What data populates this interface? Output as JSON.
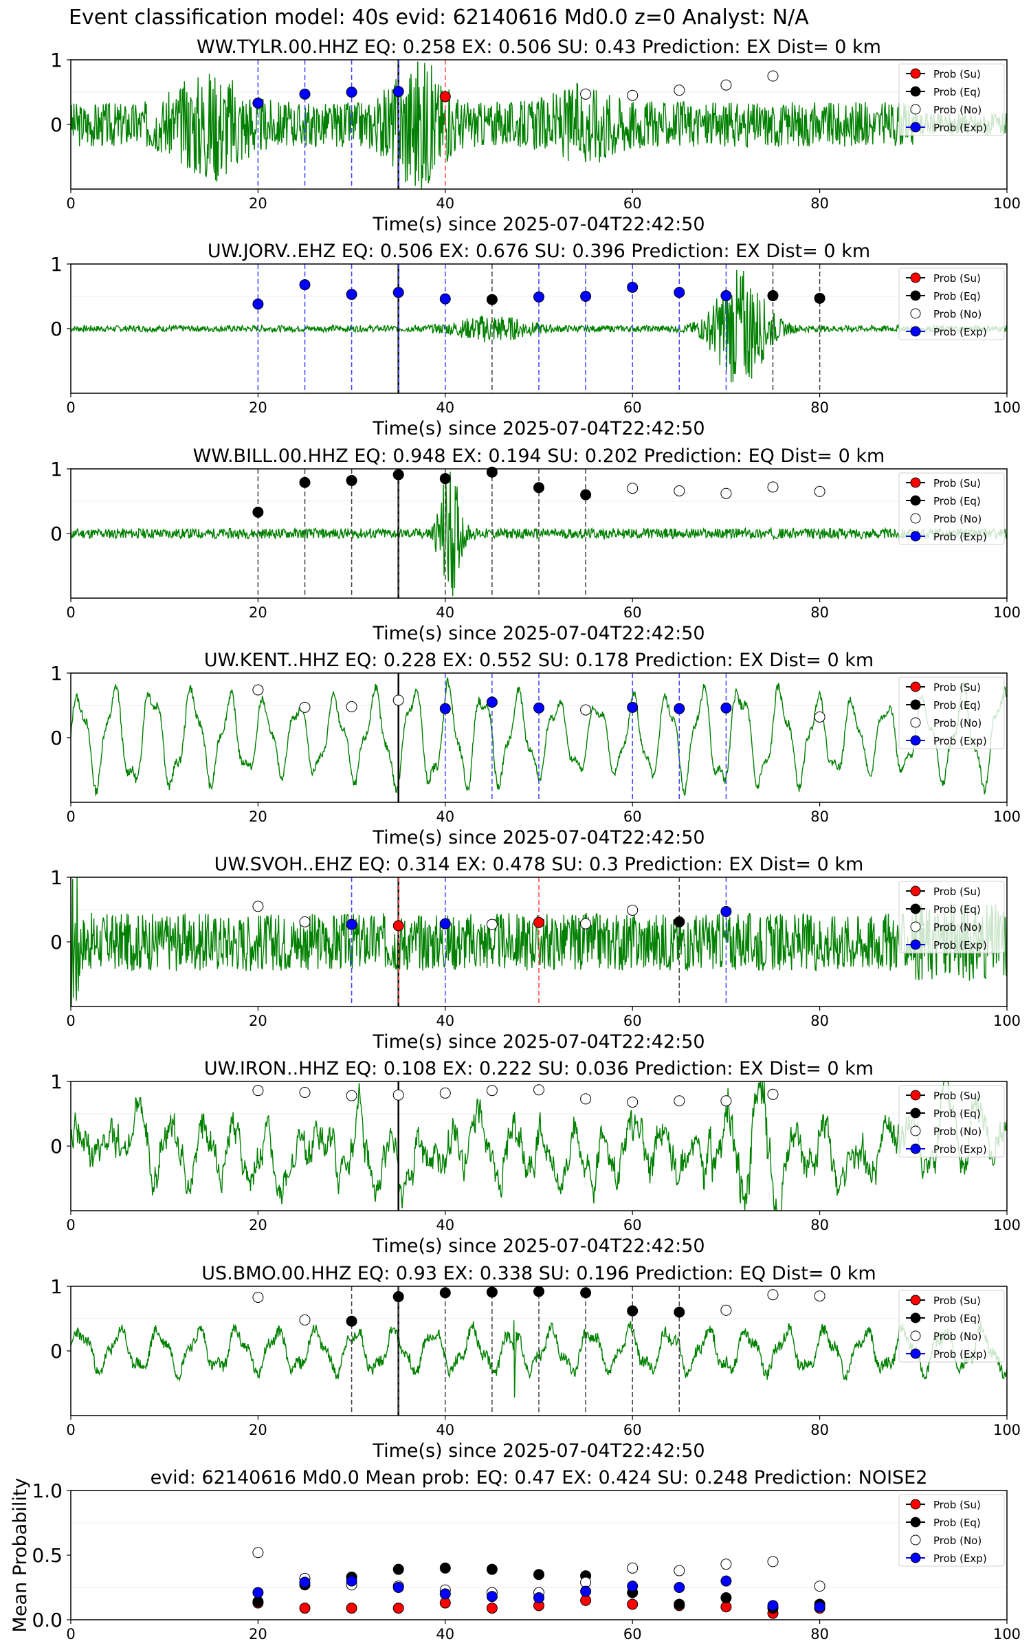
{
  "figure_title": "Event classification model: 40s evid: 62140616 Md0.0 z=0 Analyst: N/A",
  "legend_labels": [
    "Prob (Su)",
    "Prob (Eq)",
    "Prob (No)",
    "Prob (Exp)"
  ],
  "colors": {
    "su": "#ff0000",
    "eq": "#000000",
    "no": "#ffffff",
    "exp": "#0000ff",
    "wave": "#008000"
  },
  "chart_data": [
    {
      "type": "line",
      "title": "WW.TYLR.00.HHZ   EQ: 0.258  EX: 0.506  SU: 0.43   Prediction: EX    Dist= 0 km",
      "xlabel": "Time(s) since 2025-07-04T22:42:50",
      "xlim": [
        0,
        100
      ],
      "ylim": [
        -1,
        1
      ],
      "xticks": [
        "0",
        "20",
        "40",
        "60",
        "80",
        "100"
      ],
      "yticks": [
        "0",
        "1"
      ],
      "waveform": {
        "style": "bursty",
        "amp": 0.45,
        "seed": 3
      },
      "window_start": 35,
      "points": [
        {
          "x": 20,
          "y": 0.33,
          "cls": "exp"
        },
        {
          "x": 25,
          "y": 0.47,
          "cls": "exp"
        },
        {
          "x": 30,
          "y": 0.5,
          "cls": "exp"
        },
        {
          "x": 35,
          "y": 0.51,
          "cls": "exp"
        },
        {
          "x": 40,
          "y": 0.43,
          "cls": "su"
        },
        {
          "x": 55,
          "y": 0.47,
          "cls": "no"
        },
        {
          "x": 60,
          "y": 0.45,
          "cls": "no"
        },
        {
          "x": 65,
          "y": 0.53,
          "cls": "no"
        },
        {
          "x": 70,
          "y": 0.61,
          "cls": "no"
        },
        {
          "x": 75,
          "y": 0.75,
          "cls": "no"
        }
      ],
      "legend": [
        "Prob (Su)",
        "Prob (Eq)",
        "Prob (No)",
        "Prob (Exp)"
      ]
    },
    {
      "type": "line",
      "title": "UW.JORV..EHZ   EQ: 0.506  EX: 0.676  SU: 0.396   Prediction: EX    Dist= 0 km",
      "xlabel": "Time(s) since 2025-07-04T22:42:50",
      "xlim": [
        0,
        100
      ],
      "ylim": [
        -1,
        1
      ],
      "xticks": [
        "0",
        "20",
        "40",
        "60",
        "80",
        "100"
      ],
      "yticks": [
        "0",
        "1"
      ],
      "waveform": {
        "style": "quiet-bursts",
        "amp": 0.02,
        "seed": 7
      },
      "window_start": 35,
      "points": [
        {
          "x": 20,
          "y": 0.38,
          "cls": "exp"
        },
        {
          "x": 25,
          "y": 0.68,
          "cls": "exp"
        },
        {
          "x": 30,
          "y": 0.53,
          "cls": "exp"
        },
        {
          "x": 35,
          "y": 0.56,
          "cls": "exp"
        },
        {
          "x": 40,
          "y": 0.46,
          "cls": "exp"
        },
        {
          "x": 45,
          "y": 0.45,
          "cls": "eq"
        },
        {
          "x": 50,
          "y": 0.49,
          "cls": "exp"
        },
        {
          "x": 55,
          "y": 0.5,
          "cls": "exp"
        },
        {
          "x": 60,
          "y": 0.64,
          "cls": "exp"
        },
        {
          "x": 65,
          "y": 0.56,
          "cls": "exp"
        },
        {
          "x": 70,
          "y": 0.51,
          "cls": "exp"
        },
        {
          "x": 75,
          "y": 0.51,
          "cls": "eq"
        },
        {
          "x": 80,
          "y": 0.47,
          "cls": "eq"
        }
      ],
      "legend": [
        "Prob (Su)",
        "Prob (Eq)",
        "Prob (No)",
        "Prob (Exp)"
      ]
    },
    {
      "type": "line",
      "title": "WW.BILL.00.HHZ   EQ: 0.948  EX: 0.194  SU: 0.202   Prediction: EQ    Dist= 0 km",
      "xlabel": "Time(s) since 2025-07-04T22:42:50",
      "xlim": [
        0,
        100
      ],
      "ylim": [
        -1,
        1
      ],
      "xticks": [
        "0",
        "20",
        "40",
        "60",
        "80",
        "100"
      ],
      "yticks": [
        "0",
        "1"
      ],
      "waveform": {
        "style": "spike",
        "amp": 0.05,
        "seed": 11
      },
      "window_start": 35,
      "points": [
        {
          "x": 20,
          "y": 0.33,
          "cls": "eq"
        },
        {
          "x": 25,
          "y": 0.79,
          "cls": "eq"
        },
        {
          "x": 30,
          "y": 0.82,
          "cls": "eq"
        },
        {
          "x": 35,
          "y": 0.91,
          "cls": "eq"
        },
        {
          "x": 40,
          "y": 0.85,
          "cls": "eq"
        },
        {
          "x": 45,
          "y": 0.95,
          "cls": "eq"
        },
        {
          "x": 50,
          "y": 0.71,
          "cls": "eq"
        },
        {
          "x": 55,
          "y": 0.6,
          "cls": "eq"
        },
        {
          "x": 60,
          "y": 0.7,
          "cls": "no"
        },
        {
          "x": 65,
          "y": 0.66,
          "cls": "no"
        },
        {
          "x": 70,
          "y": 0.62,
          "cls": "no"
        },
        {
          "x": 75,
          "y": 0.72,
          "cls": "no"
        },
        {
          "x": 80,
          "y": 0.65,
          "cls": "no"
        }
      ],
      "legend": [
        "Prob (Su)",
        "Prob (Eq)",
        "Prob (No)",
        "Prob (Exp)"
      ]
    },
    {
      "type": "line",
      "title": "UW.KENT..HHZ   EQ: 0.228  EX: 0.552  SU: 0.178   Prediction: EX    Dist= 0 km",
      "xlabel": "Time(s) since 2025-07-04T22:42:50",
      "xlim": [
        0,
        100
      ],
      "ylim": [
        -1,
        1
      ],
      "xticks": [
        "0",
        "20",
        "40",
        "60",
        "80",
        "100"
      ],
      "yticks": [
        "0",
        "1"
      ],
      "waveform": {
        "style": "oscillate",
        "amp": 0.6,
        "seed": 13
      },
      "window_start": 35,
      "points": [
        {
          "x": 20,
          "y": 0.74,
          "cls": "no"
        },
        {
          "x": 25,
          "y": 0.47,
          "cls": "no"
        },
        {
          "x": 30,
          "y": 0.48,
          "cls": "no"
        },
        {
          "x": 35,
          "y": 0.58,
          "cls": "no"
        },
        {
          "x": 40,
          "y": 0.45,
          "cls": "exp"
        },
        {
          "x": 45,
          "y": 0.55,
          "cls": "exp"
        },
        {
          "x": 50,
          "y": 0.46,
          "cls": "exp"
        },
        {
          "x": 55,
          "y": 0.43,
          "cls": "no"
        },
        {
          "x": 60,
          "y": 0.47,
          "cls": "exp"
        },
        {
          "x": 65,
          "y": 0.45,
          "cls": "exp"
        },
        {
          "x": 70,
          "y": 0.46,
          "cls": "exp"
        },
        {
          "x": 80,
          "y": 0.32,
          "cls": "no"
        }
      ],
      "legend": [
        "Prob (Su)",
        "Prob (Eq)",
        "Prob (No)",
        "Prob (Exp)"
      ]
    },
    {
      "type": "line",
      "title": "UW.SVOH..EHZ   EQ: 0.314  EX: 0.478  SU: 0.3   Prediction: EX    Dist= 0 km",
      "xlabel": "Time(s) since 2025-07-04T22:42:50",
      "xlim": [
        0,
        100
      ],
      "ylim": [
        -1,
        1
      ],
      "xticks": [
        "0",
        "20",
        "40",
        "60",
        "80",
        "100"
      ],
      "yticks": [
        "0",
        "1"
      ],
      "waveform": {
        "style": "noisy",
        "amp": 0.25,
        "seed": 17
      },
      "window_start": 35,
      "points": [
        {
          "x": 20,
          "y": 0.55,
          "cls": "no"
        },
        {
          "x": 25,
          "y": 0.31,
          "cls": "no"
        },
        {
          "x": 30,
          "y": 0.27,
          "cls": "exp"
        },
        {
          "x": 35,
          "y": 0.25,
          "cls": "su"
        },
        {
          "x": 40,
          "y": 0.28,
          "cls": "exp"
        },
        {
          "x": 45,
          "y": 0.27,
          "cls": "no"
        },
        {
          "x": 50,
          "y": 0.3,
          "cls": "su"
        },
        {
          "x": 55,
          "y": 0.28,
          "cls": "no"
        },
        {
          "x": 60,
          "y": 0.49,
          "cls": "no"
        },
        {
          "x": 65,
          "y": 0.31,
          "cls": "eq"
        },
        {
          "x": 70,
          "y": 0.47,
          "cls": "exp"
        }
      ],
      "legend": [
        "Prob (Su)",
        "Prob (Eq)",
        "Prob (No)",
        "Prob (Exp)"
      ]
    },
    {
      "type": "line",
      "title": "UW.IRON..HHZ   EQ: 0.108  EX: 0.222  SU: 0.036   Prediction: EX    Dist= 0 km",
      "xlabel": "Time(s) since 2025-07-04T22:42:50",
      "xlim": [
        0,
        100
      ],
      "ylim": [
        -1,
        1
      ],
      "xticks": [
        "0",
        "20",
        "40",
        "60",
        "80",
        "100"
      ],
      "yticks": [
        "0",
        "1"
      ],
      "waveform": {
        "style": "rough",
        "amp": 0.45,
        "seed": 19
      },
      "window_start": 35,
      "points": [
        {
          "x": 20,
          "y": 0.86,
          "cls": "no"
        },
        {
          "x": 25,
          "y": 0.83,
          "cls": "no"
        },
        {
          "x": 30,
          "y": 0.78,
          "cls": "no"
        },
        {
          "x": 35,
          "y": 0.79,
          "cls": "no"
        },
        {
          "x": 40,
          "y": 0.82,
          "cls": "no"
        },
        {
          "x": 45,
          "y": 0.86,
          "cls": "no"
        },
        {
          "x": 50,
          "y": 0.87,
          "cls": "no"
        },
        {
          "x": 55,
          "y": 0.73,
          "cls": "no"
        },
        {
          "x": 60,
          "y": 0.68,
          "cls": "no"
        },
        {
          "x": 65,
          "y": 0.7,
          "cls": "no"
        },
        {
          "x": 70,
          "y": 0.7,
          "cls": "no"
        },
        {
          "x": 75,
          "y": 0.8,
          "cls": "no"
        }
      ],
      "legend": [
        "Prob (Su)",
        "Prob (Eq)",
        "Prob (No)",
        "Prob (Exp)"
      ]
    },
    {
      "type": "line",
      "title": "US.BMO.00.HHZ   EQ: 0.93  EX: 0.338  SU: 0.196   Prediction: EQ    Dist= 0 km",
      "xlabel": "Time(s) since 2025-07-04T22:42:50",
      "xlim": [
        0,
        100
      ],
      "ylim": [
        -1,
        1
      ],
      "xticks": [
        "0",
        "20",
        "40",
        "60",
        "80",
        "100"
      ],
      "yticks": [
        "0",
        "1"
      ],
      "waveform": {
        "style": "low-osc",
        "amp": 0.18,
        "seed": 23
      },
      "window_start": 35,
      "points": [
        {
          "x": 20,
          "y": 0.83,
          "cls": "no"
        },
        {
          "x": 25,
          "y": 0.48,
          "cls": "no"
        },
        {
          "x": 30,
          "y": 0.46,
          "cls": "eq"
        },
        {
          "x": 35,
          "y": 0.84,
          "cls": "eq"
        },
        {
          "x": 40,
          "y": 0.9,
          "cls": "eq"
        },
        {
          "x": 45,
          "y": 0.91,
          "cls": "eq"
        },
        {
          "x": 50,
          "y": 0.92,
          "cls": "eq"
        },
        {
          "x": 55,
          "y": 0.9,
          "cls": "eq"
        },
        {
          "x": 60,
          "y": 0.62,
          "cls": "eq"
        },
        {
          "x": 65,
          "y": 0.6,
          "cls": "eq"
        },
        {
          "x": 70,
          "y": 0.63,
          "cls": "no"
        },
        {
          "x": 75,
          "y": 0.87,
          "cls": "no"
        },
        {
          "x": 80,
          "y": 0.85,
          "cls": "no"
        }
      ],
      "legend": [
        "Prob (Su)",
        "Prob (Eq)",
        "Prob (No)",
        "Prob (Exp)"
      ]
    },
    {
      "type": "scatter",
      "title": "evid: 62140616  Md0.0   Mean prob:   EQ: 0.47  EX: 0.424  SU: 0.248   Prediction: NOISE2",
      "ylabel": "Mean Probability",
      "xlim": [
        0,
        100
      ],
      "ylim": [
        0,
        1
      ],
      "xticks": [
        "0",
        "20",
        "40",
        "60",
        "80",
        "100"
      ],
      "yticks": [
        "0.0",
        "0.5",
        "1.0"
      ],
      "ytick_values": [
        0,
        0.5,
        1.0
      ],
      "series": [
        {
          "name": "Prob (Su)",
          "cls": "su",
          "x": [
            20,
            25,
            30,
            35,
            40,
            45,
            50,
            55,
            60,
            65,
            70,
            75,
            80
          ],
          "values": [
            0.13,
            0.09,
            0.09,
            0.09,
            0.13,
            0.09,
            0.11,
            0.15,
            0.12,
            0.11,
            0.1,
            0.05,
            0.09
          ]
        },
        {
          "name": "Prob (Eq)",
          "cls": "eq",
          "x": [
            20,
            25,
            30,
            35,
            40,
            45,
            50,
            55,
            60,
            65,
            70,
            75,
            80
          ],
          "values": [
            0.14,
            0.27,
            0.33,
            0.39,
            0.4,
            0.39,
            0.35,
            0.34,
            0.21,
            0.12,
            0.17,
            0.09,
            0.12
          ]
        },
        {
          "name": "Prob (No)",
          "cls": "no",
          "x": [
            20,
            25,
            30,
            35,
            40,
            45,
            50,
            55,
            60,
            65,
            70,
            75,
            80
          ],
          "values": [
            0.52,
            0.32,
            0.27,
            0.26,
            0.23,
            0.21,
            0.21,
            0.29,
            0.4,
            0.38,
            0.43,
            0.45,
            0.26
          ]
        },
        {
          "name": "Prob (Exp)",
          "cls": "exp",
          "x": [
            20,
            25,
            30,
            35,
            40,
            45,
            50,
            55,
            60,
            65,
            70,
            75,
            80
          ],
          "values": [
            0.21,
            0.29,
            0.3,
            0.25,
            0.2,
            0.18,
            0.17,
            0.22,
            0.26,
            0.25,
            0.3,
            0.11,
            0.1
          ]
        }
      ],
      "legend": [
        "Prob (Su)",
        "Prob (Eq)",
        "Prob (No)",
        "Prob (Exp)"
      ]
    }
  ]
}
